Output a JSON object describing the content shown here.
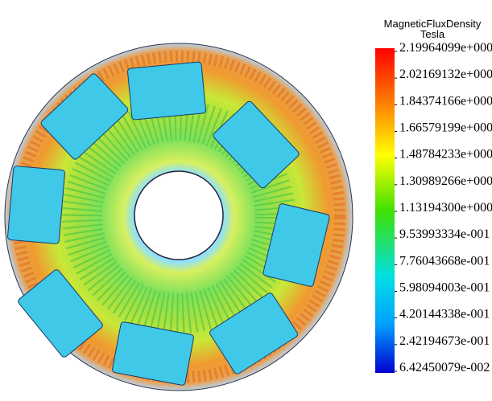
{
  "legend": {
    "title": "MagneticFluxDensity",
    "unit": "Tesla",
    "ticks": [
      "2.19964099e+000",
      "2.02169132e+000",
      "1.84374166e+000",
      "1.66579199e+000",
      "1.48784233e+000",
      "1.30989266e+000",
      "1.13194300e+000",
      "9.53993334e-001",
      "7.76043668e-001",
      "5.98094003e-001",
      "4.20144338e-001",
      "2.42194673e-001",
      "6.42450079e-002"
    ]
  }
}
